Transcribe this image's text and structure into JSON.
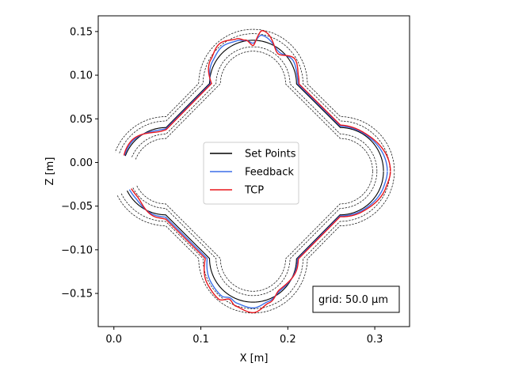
{
  "chart_data": {
    "type": "line",
    "xlabel": "X [m]",
    "ylabel": "Z [m]",
    "xlim": [
      -0.018,
      0.34
    ],
    "ylim": [
      -0.188,
      0.168
    ],
    "xticks": [
      0.0,
      0.1,
      0.2,
      0.3
    ],
    "xtick_labels": [
      "0.0",
      "0.1",
      "0.2",
      "0.3"
    ],
    "yticks": [
      -0.15,
      -0.1,
      -0.05,
      0.0,
      0.05,
      0.1,
      0.15
    ],
    "ytick_labels": [
      "−0.15",
      "−0.10",
      "−0.05",
      "0.00",
      "0.05",
      "0.10",
      "0.15"
    ],
    "grid": false,
    "legend_position": "center",
    "path_shape": {
      "center": [
        0.16,
        -0.01
      ],
      "outer_lobe_center_distance": 0.1,
      "outer_lobe_radius": 0.05,
      "inner_connector_radius": 0.05,
      "gap_start_angle_deg": 170,
      "gap_end_angle_deg": 193,
      "guide_offsets": [
        -0.0125,
        -0.0075,
        0.0075,
        0.0125
      ]
    },
    "series": [
      {
        "name": "Set Points",
        "color": "#000000",
        "style": "solid",
        "offset_scale": 0.0
      },
      {
        "name": "Feedback",
        "color": "#3b6fe8",
        "style": "solid",
        "offset_scale": 0.55
      },
      {
        "name": "TCP",
        "color": "#e8161c",
        "style": "solid",
        "offset_scale": 1.0
      }
    ],
    "guide_lines": {
      "color": "#000000",
      "style": "dashed"
    },
    "deviation_profile": {
      "angle_deg": [
        0,
        30,
        50,
        60,
        70,
        85,
        90,
        95,
        100,
        110,
        120,
        140,
        160,
        200,
        220,
        240,
        250,
        255,
        260,
        270,
        280,
        290,
        310,
        330,
        350
      ],
      "tcp_offset_m": [
        0.008,
        0.002,
        0.003,
        0.006,
        -0.005,
        0.012,
        -0.006,
        0.001,
        0.005,
        0.01,
        0.006,
        -0.004,
        0.003,
        -0.006,
        0.004,
        0.01,
        0.011,
        0.004,
        0.008,
        0.012,
        0.004,
        -0.003,
        0.002,
        0.003,
        0.006
      ]
    },
    "annotation": {
      "text": "grid: 50.0 μm",
      "position": "bottom-right"
    }
  }
}
